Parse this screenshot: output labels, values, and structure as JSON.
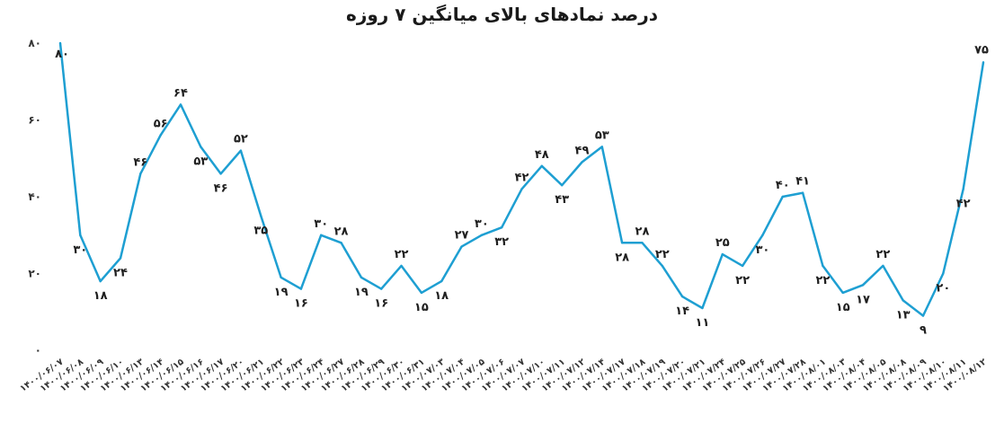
{
  "chart_data": {
    "type": "line",
    "title": "درصد نمادهای بالای میانگین ۷ روزه",
    "xlabel": "",
    "ylabel": "",
    "ylim": [
      0,
      80
    ],
    "yticks": [
      0,
      20,
      40,
      60,
      80
    ],
    "ytick_labels": [
      "۰",
      "۲۰",
      "۴۰",
      "۶۰",
      "۸۰"
    ],
    "grid": false,
    "line_color": "#1e9fd2",
    "categories": [
      "۱۴۰۰/۰۶/۰۷",
      "۱۴۰۰/۰۶/۰۸",
      "۱۴۰۰/۰۶/۰۹",
      "۱۴۰۰/۰۶/۱۰",
      "۱۴۰۰/۰۶/۱۳",
      "۱۴۰۰/۰۶/۱۴",
      "۱۴۰۰/۰۶/۱۵",
      "۱۴۰۰/۰۶/۱۶",
      "۱۴۰۰/۰۶/۱۷",
      "۱۴۰۰/۰۶/۲۰",
      "۱۴۰۰/۰۶/۲۱",
      "۱۴۰۰/۰۶/۲۲",
      "۱۴۰۰/۰۶/۲۳",
      "۱۴۰۰/۰۶/۲۴",
      "۱۴۰۰/۰۶/۲۷",
      "۱۴۰۰/۰۶/۲۸",
      "۱۴۰۰/۰۶/۲۹",
      "۱۴۰۰/۰۶/۳۰",
      "۱۴۰۰/۰۶/۳۱",
      "۱۴۰۰/۰۷/۰۳",
      "۱۴۰۰/۰۷/۰۴",
      "۱۴۰۰/۰۷/۰۵",
      "۱۴۰۰/۰۷/۰۶",
      "۱۴۰۰/۰۷/۰۷",
      "۱۴۰۰/۰۷/۱۰",
      "۱۴۰۰/۰۷/۱۱",
      "۱۴۰۰/۰۷/۱۲",
      "۱۴۰۰/۰۷/۱۴",
      "۱۴۰۰/۰۷/۱۷",
      "۱۴۰۰/۰۷/۱۸",
      "۱۴۰۰/۰۷/۱۹",
      "۱۴۰۰/۰۷/۲۰",
      "۱۴۰۰/۰۷/۲۱",
      "۱۴۰۰/۰۷/۲۴",
      "۱۴۰۰/۰۷/۲۵",
      "۱۴۰۰/۰۷/۲۶",
      "۱۴۰۰/۰۷/۲۷",
      "۱۴۰۰/۰۷/۲۸",
      "۱۴۰۰/۰۸/۰۱",
      "۱۴۰۰/۰۸/۰۳",
      "۱۴۰۰/۰۸/۰۴",
      "۱۴۰۰/۰۸/۰۵",
      "۱۴۰۰/۰۸/۰۸",
      "۱۴۰۰/۰۸/۰۹",
      "۱۴۰۰/۰۸/۱۰",
      "۱۴۰۰/۰۸/۱۱",
      "۱۴۰۰/۰۸/۱۲"
    ],
    "series": [
      {
        "values": [
          80,
          30,
          18,
          24,
          46,
          56,
          64,
          53,
          46,
          52,
          35,
          19,
          16,
          30,
          28,
          19,
          16,
          22,
          15,
          18,
          27,
          30,
          32,
          42,
          48,
          43,
          49,
          53,
          28,
          28,
          22,
          14,
          11,
          25,
          22,
          30,
          40,
          41,
          22,
          15,
          17,
          22,
          13,
          9,
          20,
          42,
          75
        ],
        "labels": [
          "۸۰",
          "۳۰",
          "۱۸",
          "۲۴",
          "۴۶",
          "۵۶",
          "۶۴",
          "۵۳",
          "۴۶",
          "۵۲",
          "۳۵",
          "۱۹",
          "۱۶",
          "۳۰",
          "۲۸",
          "۱۹",
          "۱۶",
          "۲۲",
          "۱۵",
          "۱۸",
          "۲۷",
          "۳۰",
          "۳۲",
          "۴۲",
          "۴۸",
          "۴۳",
          "۴۹",
          "۵۳",
          "۲۸",
          "۲۸",
          "۲۲",
          "۱۴",
          "۱۱",
          "۲۵",
          "۲۲",
          "۳۰",
          "۴۰",
          "۴۱",
          "۲۲",
          "۱۵",
          "۱۷",
          "۲۲",
          "۱۳",
          "۹",
          "۲۰",
          "۴۲",
          "۷۵"
        ]
      }
    ]
  }
}
